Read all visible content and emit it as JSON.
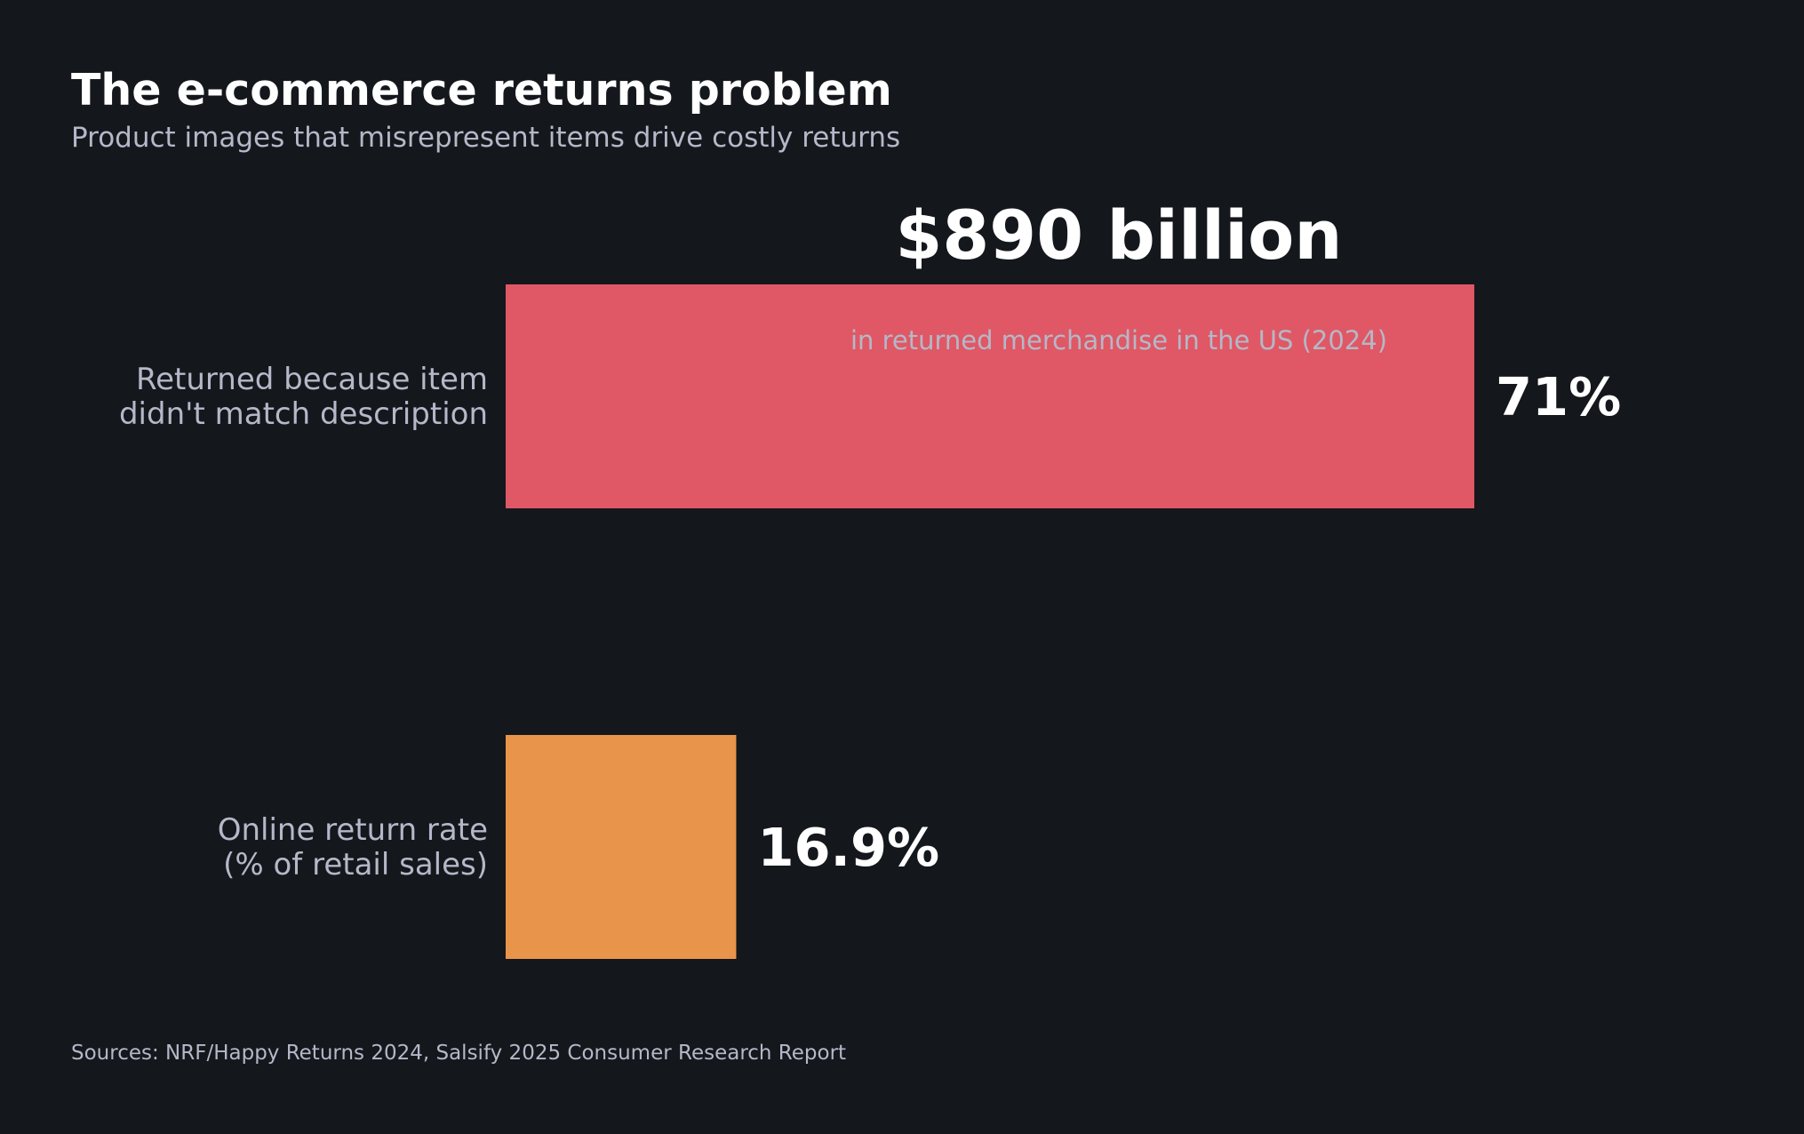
{
  "title": "The e-commerce returns problem",
  "subtitle": "Product images that misrepresent items drive costly returns",
  "callout": {
    "value": "$890 billion",
    "caption": "in returned merchandise in the US (2024)"
  },
  "source": "Sources: NRF/Happy Returns 2024, Salsify 2025 Consumer Research Report",
  "colors": {
    "background": "#14171c",
    "title": "#ffffff",
    "muted": "#b4b8c8",
    "bar_primary": "#e05865",
    "bar_secondary": "#e8954b"
  },
  "chart_data": {
    "type": "bar",
    "orientation": "horizontal",
    "categories": [
      "Returned because item didn't match description",
      "Online return rate (% of retail sales)"
    ],
    "category_lines": [
      [
        "Returned because item",
        "didn't match description"
      ],
      [
        "Online return rate",
        "(% of retail sales)"
      ]
    ],
    "values": [
      71,
      16.9
    ],
    "value_labels": [
      "71%",
      "16.9%"
    ],
    "bar_colors": [
      "#e05865",
      "#e8954b"
    ],
    "xlim": [
      0,
      100
    ],
    "grid": false,
    "legend": "none"
  }
}
